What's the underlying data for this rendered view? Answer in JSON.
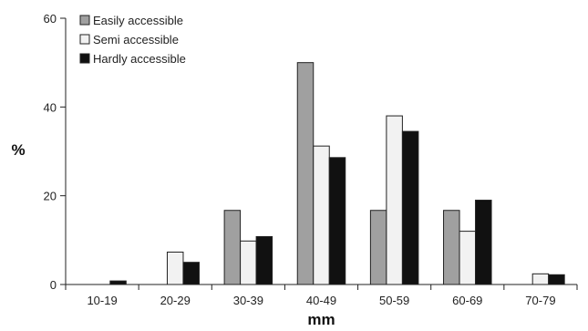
{
  "chart_data": {
    "type": "bar",
    "title": "",
    "xlabel": "mm",
    "ylabel": "%",
    "ylim": [
      0,
      60
    ],
    "yticks": [
      0,
      20,
      40,
      60
    ],
    "grid": false,
    "legend_position": "top-left",
    "categories": [
      "10-19",
      "20-29",
      "30-39",
      "40-49",
      "50-59",
      "60-69",
      "70-79"
    ],
    "series": [
      {
        "name": "Easily accessible",
        "color": "#a0a0a0",
        "values": [
          0,
          0,
          16.7,
          50,
          16.7,
          16.7,
          0
        ]
      },
      {
        "name": "Semi accessible",
        "color": "#f2f2f2",
        "values": [
          0,
          7.3,
          9.8,
          31.2,
          38,
          12,
          2.4
        ]
      },
      {
        "name": "Hardly accessible",
        "color": "#111111",
        "values": [
          0.8,
          5,
          10.8,
          28.6,
          34.5,
          19,
          2.2
        ]
      }
    ]
  }
}
